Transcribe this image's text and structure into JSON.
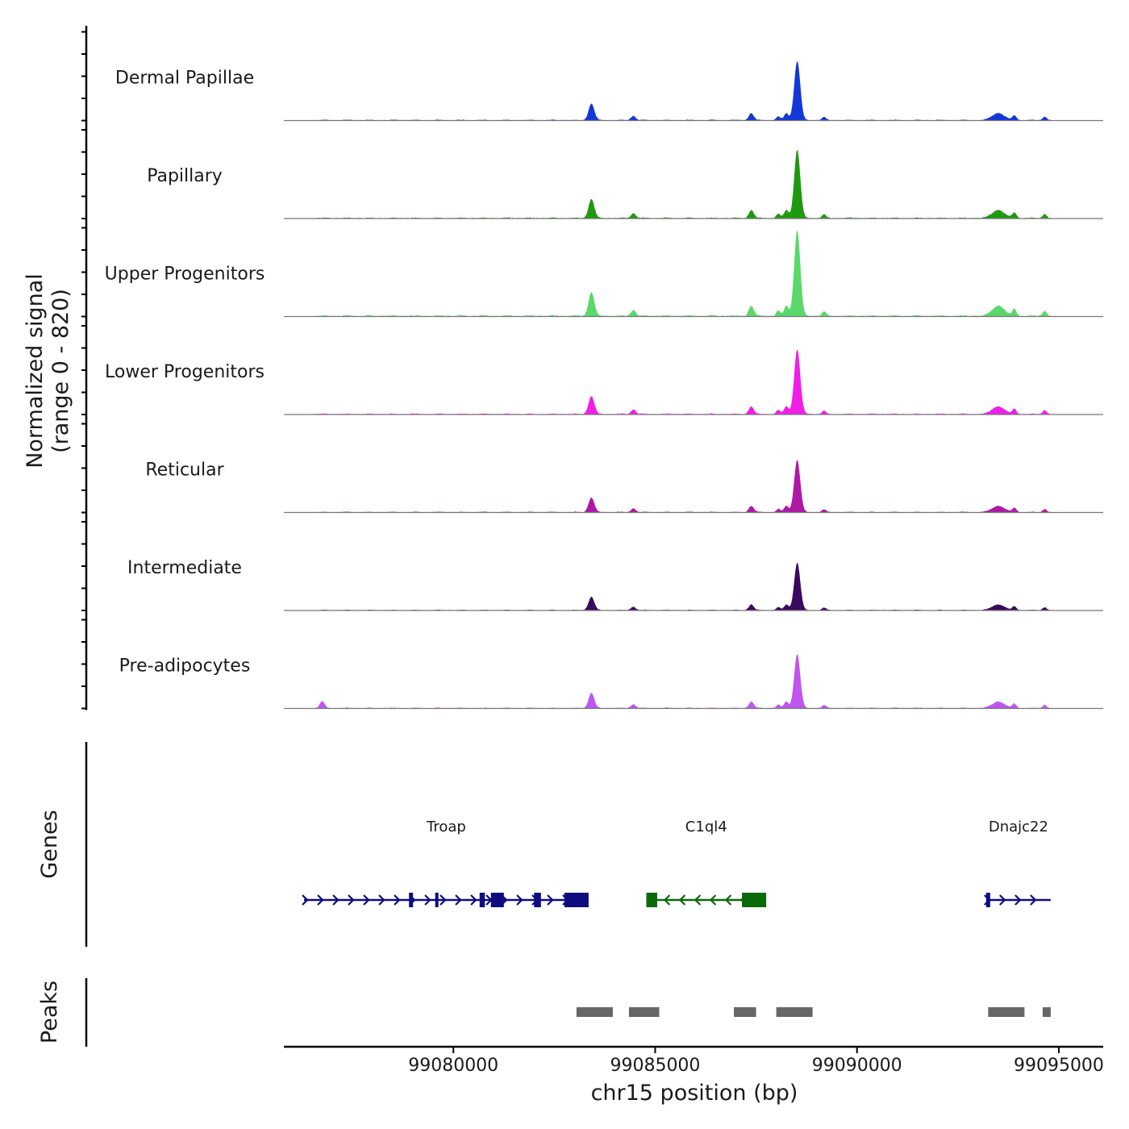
{
  "chart_data": {
    "type": "area",
    "title": "",
    "xlabel": "chr15 position (bp)",
    "ylabel_line1": "Normalized signal",
    "ylabel_line2": "(range 0 - 820)",
    "x_range": [
      99075800,
      99096100
    ],
    "x_ticks": [
      {
        "value": 99080000,
        "label": "99080000"
      },
      {
        "value": 99085000,
        "label": "99085000"
      },
      {
        "value": 99090000,
        "label": "99090000"
      },
      {
        "value": 99095000,
        "label": "99095000"
      }
    ],
    "y_range": [
      0,
      820
    ],
    "signal_x_extent": [
      99076560,
      99094800
    ],
    "base_peaks": [
      {
        "center": 99083420,
        "width": 70,
        "height": 0.28
      },
      {
        "center": 99084460,
        "width": 60,
        "height": 0.07
      },
      {
        "center": 99087380,
        "width": 60,
        "height": 0.12
      },
      {
        "center": 99088050,
        "width": 50,
        "height": 0.06
      },
      {
        "center": 99088250,
        "width": 55,
        "height": 0.12
      },
      {
        "center": 99088520,
        "width": 75,
        "height": 1.0
      },
      {
        "center": 99089180,
        "width": 50,
        "height": 0.05
      },
      {
        "center": 99093500,
        "width": 150,
        "height": 0.12
      },
      {
        "center": 99093900,
        "width": 50,
        "height": 0.08
      },
      {
        "center": 99094650,
        "width": 50,
        "height": 0.06
      }
    ],
    "series": [
      {
        "name": "Dermal Papillae",
        "color": "#1438d8",
        "scale": 0.62,
        "extra_peaks": []
      },
      {
        "name": "Papillary",
        "color": "#1f9a10",
        "scale": 0.72,
        "extra_peaks": []
      },
      {
        "name": "Upper Progenitors",
        "color": "#5ad86a",
        "scale": 0.9,
        "extra_peaks": []
      },
      {
        "name": "Lower Progenitors",
        "color": "#f01ee8",
        "scale": 0.68,
        "extra_peaks": []
      },
      {
        "name": "Reticular",
        "color": "#ad1aa6",
        "scale": 0.55,
        "extra_peaks": []
      },
      {
        "name": "Intermediate",
        "color": "#3a0a5e",
        "scale": 0.5,
        "extra_peaks": []
      },
      {
        "name": "Pre-adipocytes",
        "color": "#bf55ee",
        "scale": 0.57,
        "extra_peaks": [
          {
            "center": 99076750,
            "width": 60,
            "height": 0.12
          }
        ]
      }
    ],
    "genes_label": "Genes",
    "genes": [
      {
        "name": "Troap",
        "strand": "+",
        "color": "#0d0d80",
        "start": 99076300,
        "end": 99083350,
        "exons": [
          [
            99078900,
            99079000
          ],
          [
            99079550,
            99079620
          ],
          [
            99080650,
            99080780
          ],
          [
            99080930,
            99081250
          ],
          [
            99082000,
            99082170
          ],
          [
            99082750,
            99083350
          ]
        ]
      },
      {
        "name": "C1ql4",
        "strand": "-",
        "color": "#0a6a0a",
        "start": 99084780,
        "end": 99087750,
        "exons": [
          [
            99084780,
            99085050
          ],
          [
            99087150,
            99087750
          ]
        ]
      },
      {
        "name": "Dnajc22",
        "strand": "+",
        "color": "#0d0d80",
        "start": 99093200,
        "end": 99094800,
        "exons": [
          [
            99093200,
            99093300
          ]
        ]
      }
    ],
    "peaks_label": "Peaks",
    "peak_regions": [
      [
        99083050,
        99083950
      ],
      [
        99084350,
        99085100
      ],
      [
        99086950,
        99087500
      ],
      [
        99088000,
        99088900
      ],
      [
        99093250,
        99094150
      ],
      [
        99094600,
        99094800
      ]
    ],
    "peak_color": "#666666"
  }
}
